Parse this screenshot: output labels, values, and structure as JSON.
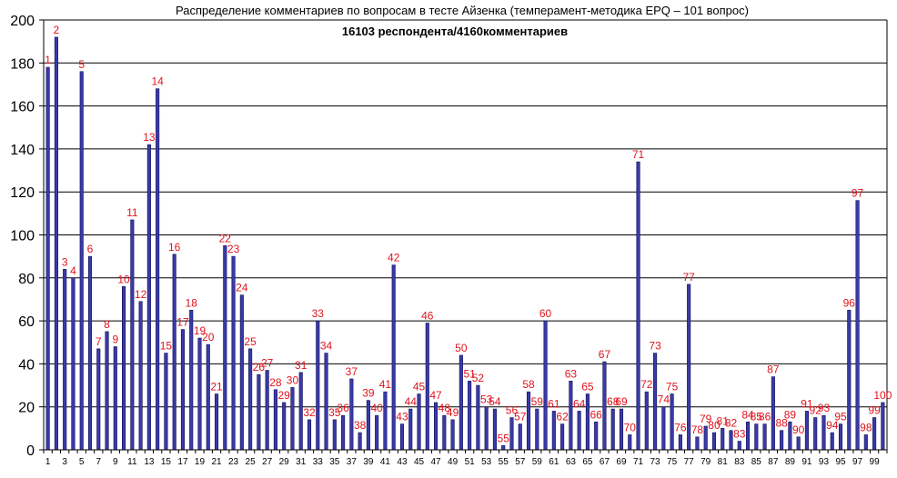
{
  "chart_data": {
    "type": "bar",
    "title": "Распределение комментариев по вопросам в тесте Айзенка (темперамент-методика EPQ – 101 вопрос)",
    "subtitle": "16103 респондента/4160комментариев",
    "xlabel": "",
    "ylabel": "",
    "ylim": [
      0,
      200
    ],
    "y_ticks": [
      0,
      20,
      40,
      60,
      80,
      100,
      120,
      140,
      160,
      180,
      200
    ],
    "grid": true,
    "legend": "none",
    "colors": {
      "bar_fill": "#3a3aa8",
      "bar_stroke": "#10105a",
      "label": "#e0141e",
      "grid": "#000000",
      "plot_background": "#ffffff"
    },
    "categories": [
      "1",
      "2",
      "3",
      "4",
      "5",
      "6",
      "7",
      "8",
      "9",
      "10",
      "11",
      "12",
      "13",
      "14",
      "15",
      "16",
      "17",
      "18",
      "19",
      "20",
      "21",
      "22",
      "23",
      "24",
      "25",
      "26",
      "27",
      "28",
      "29",
      "30",
      "31",
      "32",
      "33",
      "34",
      "35",
      "36",
      "37",
      "38",
      "39",
      "40",
      "41",
      "42",
      "43",
      "44",
      "45",
      "46",
      "47",
      "48",
      "49",
      "50",
      "51",
      "52",
      "53",
      "54",
      "55",
      "56",
      "57",
      "58",
      "59",
      "60",
      "61",
      "62",
      "63",
      "64",
      "65",
      "66",
      "67",
      "68",
      "69",
      "70",
      "71",
      "72",
      "73",
      "74",
      "75",
      "76",
      "77",
      "78",
      "79",
      "80",
      "81",
      "82",
      "83",
      "84",
      "85",
      "86",
      "87",
      "88",
      "89",
      "90",
      "91",
      "92",
      "93",
      "94",
      "95",
      "96",
      "97",
      "98",
      "99",
      "100"
    ],
    "x_tick_labels": [
      "1",
      "3",
      "5",
      "7",
      "9",
      "11",
      "13",
      "15",
      "17",
      "19",
      "21",
      "23",
      "25",
      "27",
      "29",
      "31",
      "33",
      "35",
      "37",
      "39",
      "41",
      "43",
      "45",
      "47",
      "49",
      "51",
      "53",
      "55",
      "57",
      "59",
      "61",
      "63",
      "65",
      "67",
      "69",
      "71",
      "73",
      "75",
      "77",
      "79",
      "81",
      "83",
      "85",
      "87",
      "89",
      "91",
      "93",
      "95",
      "97",
      "99"
    ],
    "values": [
      178,
      192,
      84,
      80,
      176,
      90,
      47,
      55,
      48,
      76,
      107,
      69,
      142,
      168,
      45,
      91,
      56,
      65,
      52,
      49,
      26,
      95,
      90,
      72,
      47,
      35,
      37,
      28,
      22,
      29,
      36,
      14,
      60,
      45,
      14,
      16,
      33,
      8,
      23,
      16,
      27,
      86,
      12,
      19,
      26,
      59,
      22,
      16,
      14,
      44,
      32,
      30,
      20,
      19,
      2,
      15,
      12,
      27,
      19,
      60,
      18,
      12,
      32,
      18,
      26,
      13,
      41,
      19,
      19,
      7,
      134,
      27,
      45,
      20,
      26,
      7,
      77,
      6,
      11,
      8,
      10,
      9,
      4,
      13,
      12,
      12,
      34,
      9,
      13,
      6,
      18,
      15,
      16,
      8,
      12,
      65,
      116,
      7,
      15,
      22
    ]
  }
}
